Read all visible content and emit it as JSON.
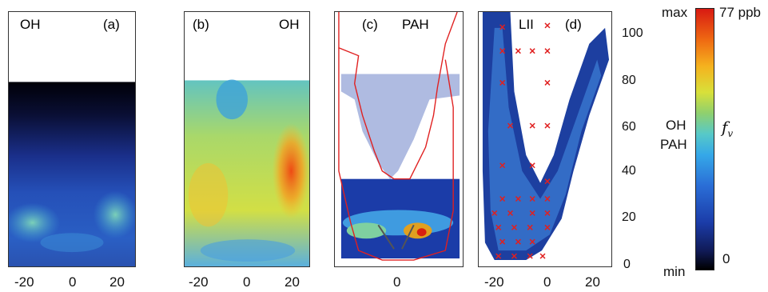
{
  "panels": [
    {
      "tag": "(a)",
      "species": "OH"
    },
    {
      "tag": "(b)",
      "species": "OH"
    },
    {
      "tag": "(c)",
      "species": "PAH"
    },
    {
      "tag": "(d)",
      "species": "LII"
    }
  ],
  "x_ticks": [
    "-20",
    "0",
    "20"
  ],
  "y_ticks": [
    "100",
    "80",
    "60",
    "40",
    "20",
    "0"
  ],
  "colorbar": {
    "max": "max",
    "min": "min",
    "max_value": "77 ppb",
    "min_value": "0",
    "species_1": "OH",
    "species_2": "PAH",
    "fv_symbol": "f",
    "fv_subscript": "v"
  },
  "colors": {
    "contour": "#e02020",
    "cross": "#e02020"
  }
}
